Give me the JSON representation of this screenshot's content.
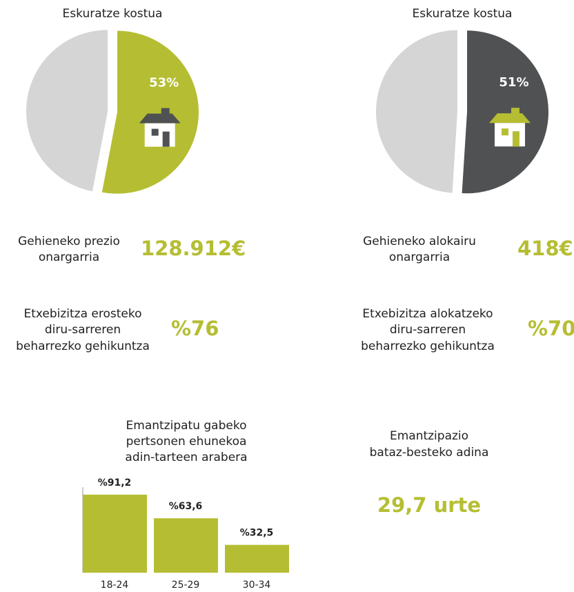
{
  "chart_data": [
    {
      "type": "pie",
      "title": "Eskuratze kostua",
      "values": [
        53,
        47
      ],
      "value_labels": [
        "53%",
        null
      ],
      "colors": [
        "#b5be32",
        "#d5d5d5"
      ],
      "icon_color": "#505152"
    },
    {
      "type": "pie",
      "title": "Eskuratze kostua",
      "values": [
        51,
        49
      ],
      "value_labels": [
        "51%",
        null
      ],
      "colors": [
        "#505152",
        "#d5d5d5"
      ],
      "icon_color": "#b5be32"
    },
    {
      "type": "bar",
      "title": [
        "Emantzipatu gabeko",
        "pertsonen ehunekoa",
        "adin-tarteen arabera"
      ],
      "categories": [
        "18-24",
        "25-29",
        "30-34"
      ],
      "values": [
        91.2,
        63.6,
        32.5
      ],
      "value_labels": [
        "%91,2",
        "%63,6",
        "%32,5"
      ],
      "color": "#b5be32",
      "ylim": [
        0,
        100
      ]
    }
  ],
  "stats": [
    {
      "label": [
        "Gehieneko prezio",
        "onargarria"
      ],
      "value": "128.912€"
    },
    {
      "label": [
        "Gehieneko alokairu",
        "onargarria"
      ],
      "value": "418€"
    },
    {
      "label": [
        "Etxebizitza erosteko",
        "diru-sarreren",
        "beharrezko gehikuntza"
      ],
      "value": "%76"
    },
    {
      "label": [
        "Etxebizitza alokatzeko",
        "diru-sarreren",
        "beharrezko gehikuntza"
      ],
      "value": "%70"
    }
  ],
  "age": {
    "label": [
      "Emantzipazio",
      "bataz-besteko adina"
    ],
    "value": "29,7 urte"
  }
}
